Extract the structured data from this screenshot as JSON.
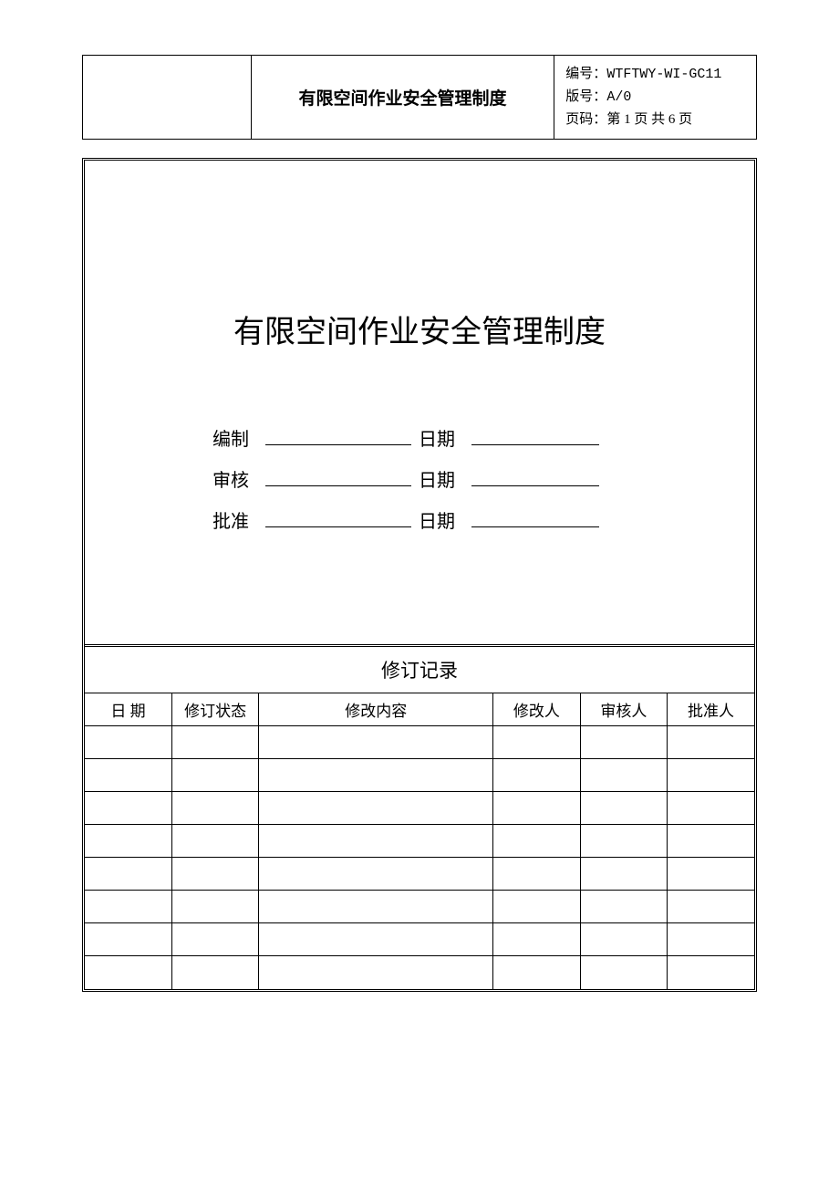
{
  "header": {
    "center_title": "有限空间作业安全管理制度",
    "doc_number_label": "编号：",
    "doc_number": "WTFTWY-WI-GC11",
    "version_label": "版号：",
    "version": "A/0",
    "page_label": "页码：",
    "page_info": "第 1 页 共 6 页"
  },
  "main": {
    "title": "有限空间作业安全管理制度",
    "signatures": [
      {
        "label": "编制",
        "date_label": "日期"
      },
      {
        "label": "审核",
        "date_label": "日期"
      },
      {
        "label": "批准",
        "date_label": "日期"
      }
    ]
  },
  "revision": {
    "section_title": "修订记录",
    "columns": [
      "日  期",
      "修订状态",
      "修改内容",
      "修改人",
      "审核人",
      "批准人"
    ],
    "rows": [
      [
        "",
        "",
        "",
        "",
        "",
        ""
      ],
      [
        "",
        "",
        "",
        "",
        "",
        ""
      ],
      [
        "",
        "",
        "",
        "",
        "",
        ""
      ],
      [
        "",
        "",
        "",
        "",
        "",
        ""
      ],
      [
        "",
        "",
        "",
        "",
        "",
        ""
      ],
      [
        "",
        "",
        "",
        "",
        "",
        ""
      ],
      [
        "",
        "",
        "",
        "",
        "",
        ""
      ],
      [
        "",
        "",
        "",
        "",
        "",
        ""
      ]
    ]
  },
  "styling": {
    "page_bg": "#ffffff",
    "border_color": "#000000",
    "main_title_fontsize": 34,
    "header_title_fontsize": 19,
    "table_fontsize": 17,
    "sign_fontsize": 20,
    "revision_header_fontsize": 21
  }
}
